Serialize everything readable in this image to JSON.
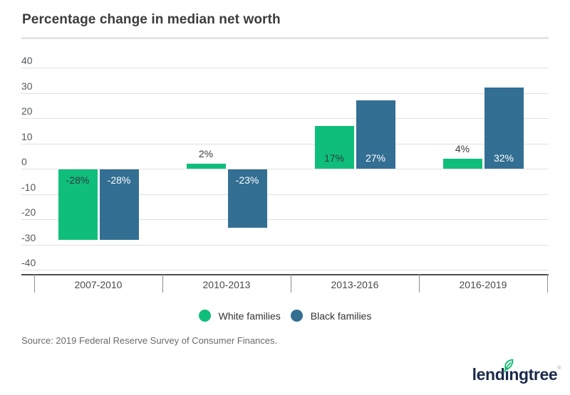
{
  "header": {
    "title": "Percentage change in median net worth"
  },
  "chart_data": {
    "type": "bar",
    "title": "Percentage change in median net worth",
    "categories": [
      "2007-2010",
      "2010-2013",
      "2013-2016",
      "2016-2019"
    ],
    "series": [
      {
        "name": "White families",
        "color": "#10BE7C",
        "values": [
          -28,
          2,
          17,
          4
        ],
        "labels": [
          "-28%",
          "2%",
          "17%",
          "4%"
        ]
      },
      {
        "name": "Black families",
        "color": "#336F93",
        "values": [
          -28,
          -23,
          27,
          32
        ],
        "labels": [
          "-28%",
          "-23%",
          "27%",
          "32%"
        ]
      }
    ],
    "ylim": [
      -40,
      40
    ],
    "ytick_interval": 10,
    "yticks": [
      "40",
      "30",
      "20",
      "10",
      "0",
      "-10",
      "-20",
      "-30",
      "-40"
    ],
    "grid": "horizontal",
    "legend_position": "bottom-center",
    "label_colors": {
      "on_green": "#2E3A40",
      "on_blue": "#FFFFFF",
      "outside": "#3B3B3B"
    }
  },
  "legend": {
    "items": [
      {
        "label": "White families",
        "color": "#10BE7C"
      },
      {
        "label": "Black families",
        "color": "#336F93"
      }
    ]
  },
  "footer": {
    "source": "Source: 2019 Federal Reserve Survey of Consumer Finances.",
    "logo_text": "lendingtree",
    "logo_trademark": "®"
  }
}
